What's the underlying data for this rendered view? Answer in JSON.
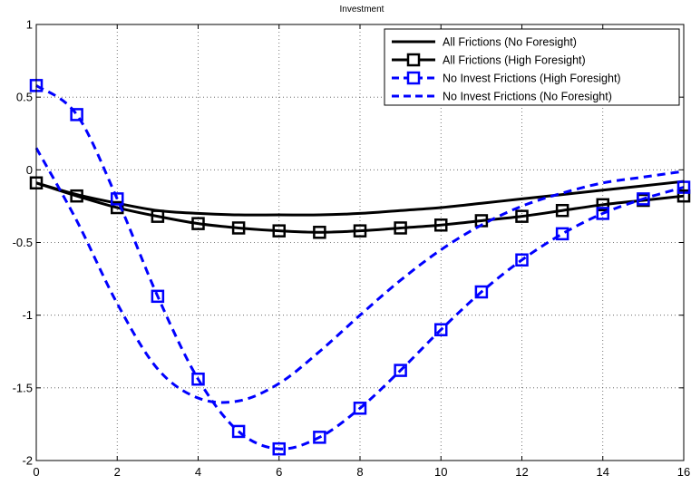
{
  "chart_data": {
    "type": "line",
    "title": "Investment",
    "xlabel": "",
    "ylabel": "",
    "xlim": [
      0,
      16
    ],
    "ylim": [
      -2,
      1
    ],
    "x_ticks": [
      0,
      2,
      4,
      6,
      8,
      10,
      12,
      14,
      16
    ],
    "y_ticks": [
      -2,
      -1.5,
      -1,
      -0.5,
      0,
      0.5,
      1
    ],
    "x_tick_labels": [
      "0",
      "2",
      "4",
      "6",
      "8",
      "10",
      "12",
      "14",
      "16"
    ],
    "y_tick_labels": [
      "-2",
      "-1.5",
      "-1",
      "-0.5",
      "0",
      "0.5",
      "1"
    ],
    "grid": true,
    "legend_position": "top-right",
    "x": [
      0,
      1,
      2,
      3,
      4,
      5,
      6,
      7,
      8,
      9,
      10,
      11,
      12,
      13,
      14,
      15,
      16
    ],
    "series": [
      {
        "name": "All Frictions (No Foresight)",
        "color": "#000000",
        "line_style": "solid",
        "marker": "none",
        "values": [
          -0.09,
          -0.17,
          -0.23,
          -0.28,
          -0.3,
          -0.31,
          -0.31,
          -0.31,
          -0.3,
          -0.28,
          -0.26,
          -0.23,
          -0.2,
          -0.17,
          -0.14,
          -0.11,
          -0.08
        ]
      },
      {
        "name": "All Frictions (High Foresight)",
        "color": "#000000",
        "line_style": "solid",
        "marker": "square",
        "values": [
          -0.09,
          -0.18,
          -0.26,
          -0.32,
          -0.37,
          -0.4,
          -0.42,
          -0.43,
          -0.42,
          -0.4,
          -0.38,
          -0.35,
          -0.32,
          -0.28,
          -0.24,
          -0.21,
          -0.18
        ]
      },
      {
        "name": "No Invest Frictions (High Foresight)",
        "color": "#0000ff",
        "line_style": "dashed",
        "marker": "square",
        "values": [
          0.58,
          0.38,
          -0.2,
          -0.87,
          -1.44,
          -1.8,
          -1.92,
          -1.84,
          -1.64,
          -1.38,
          -1.1,
          -0.84,
          -0.62,
          -0.44,
          -0.3,
          -0.2,
          -0.12
        ]
      },
      {
        "name": "No Invest Frictions (No Foresight)",
        "color": "#0000ff",
        "line_style": "dashed",
        "marker": "none",
        "values": [
          0.15,
          -0.35,
          -0.92,
          -1.37,
          -1.57,
          -1.59,
          -1.47,
          -1.25,
          -1.0,
          -0.76,
          -0.55,
          -0.38,
          -0.25,
          -0.16,
          -0.09,
          -0.05,
          -0.01
        ]
      }
    ]
  }
}
